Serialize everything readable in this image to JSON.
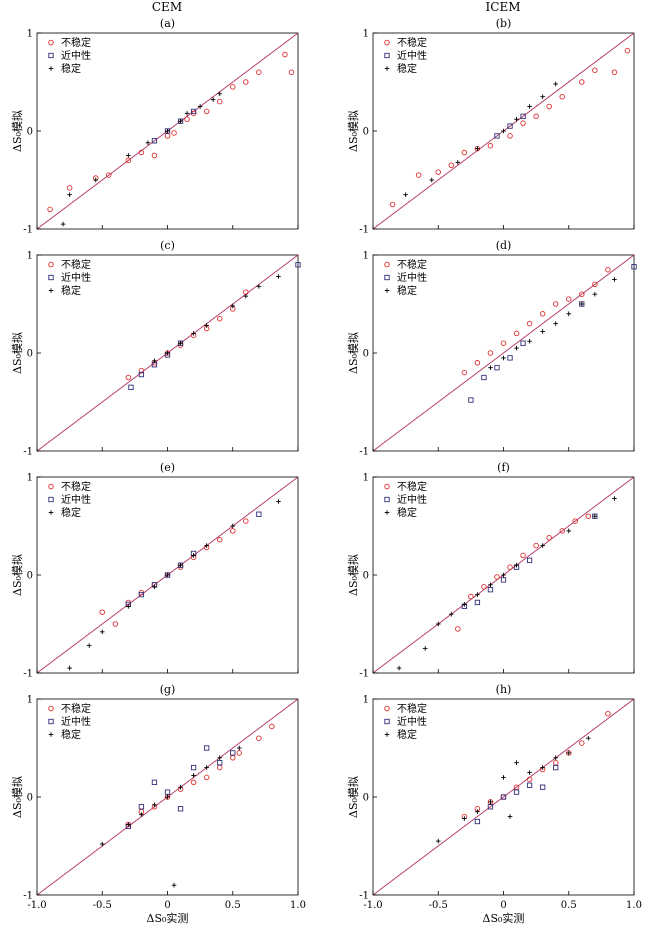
{
  "figure": {
    "column_titles": [
      "CEM",
      "ICEM"
    ],
    "panel_labels": [
      "(a)",
      "(b)",
      "(c)",
      "(d)",
      "(e)",
      "(f)",
      "(g)",
      "(h)"
    ],
    "y_axis_title": "ΔS₀模拟",
    "x_axis_title": "ΔS₀实测",
    "legend": [
      "不稳定",
      "近中性",
      "稳定"
    ],
    "colors": {
      "unstable": "#e03030",
      "neutral": "#30307a",
      "stable": "#000000",
      "line": "#b03060"
    }
  },
  "chart_data": [
    {
      "type": "scatter",
      "panel": "(a)",
      "xlim": [
        -1,
        1
      ],
      "ylim": [
        -1,
        1
      ],
      "yticks": [
        "1",
        "0",
        "-1"
      ],
      "xticks": [],
      "series": [
        {
          "name": "不稳定",
          "x": [
            -0.9,
            -0.75,
            -0.55,
            -0.45,
            -0.3,
            -0.2,
            -0.1,
            0.0,
            0.05,
            0.15,
            0.2,
            0.3,
            0.4,
            0.5,
            0.6,
            0.7,
            0.9,
            0.95
          ],
          "y": [
            -0.8,
            -0.58,
            -0.48,
            -0.45,
            -0.3,
            -0.22,
            -0.25,
            -0.05,
            -0.02,
            0.12,
            0.18,
            0.2,
            0.3,
            0.45,
            0.5,
            0.6,
            0.78,
            0.6
          ]
        },
        {
          "name": "近中性",
          "x": [
            -0.1,
            0.0,
            0.1,
            0.2
          ],
          "y": [
            -0.1,
            0.0,
            0.1,
            0.2
          ]
        },
        {
          "name": "稳定",
          "x": [
            -0.8,
            -0.75,
            -0.55,
            -0.3,
            -0.15,
            0.0,
            0.1,
            0.15,
            0.25,
            0.35,
            0.4
          ],
          "y": [
            -0.95,
            -0.65,
            -0.5,
            -0.25,
            -0.12,
            0.0,
            0.1,
            0.18,
            0.25,
            0.32,
            0.38
          ]
        }
      ]
    },
    {
      "type": "scatter",
      "panel": "(b)",
      "xlim": [
        -1,
        1
      ],
      "ylim": [
        -1,
        1
      ],
      "yticks": [
        "1",
        "0",
        "-1"
      ],
      "xticks": [],
      "series": [
        {
          "name": "不稳定",
          "x": [
            -0.85,
            -0.65,
            -0.5,
            -0.4,
            -0.3,
            -0.2,
            -0.1,
            0.05,
            0.15,
            0.25,
            0.35,
            0.45,
            0.6,
            0.7,
            0.85,
            0.95
          ],
          "y": [
            -0.75,
            -0.45,
            -0.42,
            -0.35,
            -0.22,
            -0.18,
            -0.15,
            -0.05,
            0.08,
            0.15,
            0.25,
            0.35,
            0.5,
            0.62,
            0.6,
            0.82
          ]
        },
        {
          "name": "近中性",
          "x": [
            -0.05,
            0.05,
            0.15
          ],
          "y": [
            -0.05,
            0.05,
            0.15
          ]
        },
        {
          "name": "稳定",
          "x": [
            -0.75,
            -0.55,
            -0.35,
            -0.2,
            0.0,
            0.1,
            0.2,
            0.3,
            0.4
          ],
          "y": [
            -0.65,
            -0.5,
            -0.32,
            -0.18,
            0.0,
            0.12,
            0.25,
            0.35,
            0.48
          ]
        }
      ]
    },
    {
      "type": "scatter",
      "panel": "(c)",
      "xlim": [
        -1,
        1
      ],
      "ylim": [
        -1,
        1
      ],
      "yticks": [
        "1",
        "0",
        "-1"
      ],
      "xticks": [],
      "series": [
        {
          "name": "不稳定",
          "x": [
            -0.3,
            -0.2,
            -0.1,
            0.0,
            0.1,
            0.2,
            0.3,
            0.4,
            0.5,
            0.6
          ],
          "y": [
            -0.25,
            -0.18,
            -0.1,
            0.0,
            0.08,
            0.18,
            0.25,
            0.35,
            0.45,
            0.62
          ]
        },
        {
          "name": "近中性",
          "x": [
            -0.28,
            -0.2,
            -0.1,
            0.0,
            0.1,
            1.0
          ],
          "y": [
            -0.35,
            -0.22,
            -0.12,
            -0.02,
            0.1,
            0.9
          ]
        },
        {
          "name": "稳定",
          "x": [
            -0.1,
            0.0,
            0.1,
            0.2,
            0.3,
            0.5,
            0.6,
            0.7,
            0.85
          ],
          "y": [
            -0.08,
            0.0,
            0.1,
            0.2,
            0.28,
            0.48,
            0.58,
            0.68,
            0.78
          ]
        }
      ]
    },
    {
      "type": "scatter",
      "panel": "(d)",
      "xlim": [
        -1,
        1
      ],
      "ylim": [
        -1,
        1
      ],
      "yticks": [
        "1",
        "0",
        "-1"
      ],
      "xticks": [],
      "series": [
        {
          "name": "不稳定",
          "x": [
            -0.3,
            -0.2,
            -0.1,
            0.0,
            0.1,
            0.2,
            0.3,
            0.4,
            0.5,
            0.6,
            0.7,
            0.8
          ],
          "y": [
            -0.2,
            -0.1,
            0.0,
            0.1,
            0.2,
            0.3,
            0.4,
            0.5,
            0.55,
            0.6,
            0.7,
            0.85
          ]
        },
        {
          "name": "近中性",
          "x": [
            -0.25,
            -0.15,
            -0.05,
            0.05,
            0.15,
            0.6,
            1.0
          ],
          "y": [
            -0.48,
            -0.25,
            -0.15,
            -0.05,
            0.1,
            0.5,
            0.88
          ]
        },
        {
          "name": "稳定",
          "x": [
            -0.1,
            0.0,
            0.1,
            0.2,
            0.3,
            0.4,
            0.5,
            0.6,
            0.7,
            0.85
          ],
          "y": [
            -0.15,
            -0.05,
            0.05,
            0.12,
            0.22,
            0.3,
            0.4,
            0.5,
            0.6,
            0.75
          ]
        }
      ]
    },
    {
      "type": "scatter",
      "panel": "(e)",
      "xlim": [
        -1,
        1
      ],
      "ylim": [
        -1,
        1
      ],
      "yticks": [
        "1",
        "0",
        "-1"
      ],
      "xticks": [],
      "series": [
        {
          "name": "不稳定",
          "x": [
            -0.5,
            -0.4,
            -0.3,
            -0.2,
            -0.1,
            0.0,
            0.1,
            0.2,
            0.3,
            0.4,
            0.5,
            0.6
          ],
          "y": [
            -0.38,
            -0.5,
            -0.28,
            -0.18,
            -0.1,
            0.0,
            0.08,
            0.18,
            0.28,
            0.36,
            0.45,
            0.55
          ]
        },
        {
          "name": "近中性",
          "x": [
            -0.3,
            -0.2,
            -0.1,
            0.0,
            0.1,
            0.2,
            0.7
          ],
          "y": [
            -0.3,
            -0.2,
            -0.1,
            0.0,
            0.1,
            0.22,
            0.62
          ]
        },
        {
          "name": "稳定",
          "x": [
            -0.75,
            -0.6,
            -0.5,
            -0.3,
            -0.1,
            0.0,
            0.1,
            0.2,
            0.3,
            0.5,
            0.85
          ],
          "y": [
            -0.95,
            -0.72,
            -0.58,
            -0.32,
            -0.12,
            0.0,
            0.1,
            0.2,
            0.3,
            0.5,
            0.75
          ]
        }
      ]
    },
    {
      "type": "scatter",
      "panel": "(f)",
      "xlim": [
        -1,
        1
      ],
      "ylim": [
        -1,
        1
      ],
      "yticks": [
        "1",
        "0",
        "-1"
      ],
      "xticks": [],
      "series": [
        {
          "name": "不稳定",
          "x": [
            -0.35,
            -0.25,
            -0.15,
            -0.05,
            0.05,
            0.15,
            0.25,
            0.35,
            0.45,
            0.55,
            0.65
          ],
          "y": [
            -0.55,
            -0.22,
            -0.12,
            -0.02,
            0.08,
            0.2,
            0.3,
            0.38,
            0.45,
            0.55,
            0.6
          ]
        },
        {
          "name": "近中性",
          "x": [
            -0.3,
            -0.2,
            -0.1,
            0.0,
            0.1,
            0.2,
            0.7
          ],
          "y": [
            -0.32,
            -0.28,
            -0.15,
            -0.05,
            0.08,
            0.15,
            0.6
          ]
        },
        {
          "name": "稳定",
          "x": [
            -0.8,
            -0.6,
            -0.5,
            -0.4,
            -0.3,
            -0.2,
            -0.1,
            0.0,
            0.1,
            0.3,
            0.5,
            0.7,
            0.85
          ],
          "y": [
            -0.95,
            -0.75,
            -0.5,
            -0.4,
            -0.3,
            -0.2,
            -0.1,
            0.0,
            0.1,
            0.3,
            0.45,
            0.6,
            0.78
          ]
        }
      ]
    },
    {
      "type": "scatter",
      "panel": "(g)",
      "xlim": [
        -1,
        1
      ],
      "ylim": [
        -1,
        1
      ],
      "yticks": [
        "1",
        "0",
        "-1"
      ],
      "xticks": [
        "-1.0",
        "-0.5",
        "0",
        "0.5",
        "1.0"
      ],
      "series": [
        {
          "name": "不稳定",
          "x": [
            -0.3,
            -0.2,
            -0.1,
            0.0,
            0.1,
            0.2,
            0.3,
            0.4,
            0.5,
            0.55,
            0.7,
            0.8
          ],
          "y": [
            -0.28,
            -0.15,
            -0.1,
            0.0,
            0.08,
            0.15,
            0.2,
            0.3,
            0.4,
            0.45,
            0.6,
            0.72
          ]
        },
        {
          "name": "近中性",
          "x": [
            -0.3,
            -0.2,
            -0.1,
            0.0,
            0.1,
            0.2,
            0.3,
            0.4,
            0.5
          ],
          "y": [
            -0.3,
            -0.1,
            0.15,
            0.05,
            -0.12,
            0.3,
            0.5,
            0.35,
            0.45
          ]
        },
        {
          "name": "稳定",
          "x": [
            -0.5,
            -0.3,
            -0.2,
            -0.1,
            0.0,
            0.05,
            0.1,
            0.2,
            0.3,
            0.4,
            0.55
          ],
          "y": [
            -0.48,
            -0.28,
            -0.18,
            -0.08,
            0.0,
            -0.9,
            0.1,
            0.22,
            0.3,
            0.4,
            0.5
          ]
        }
      ]
    },
    {
      "type": "scatter",
      "panel": "(h)",
      "xlim": [
        -1,
        1
      ],
      "ylim": [
        -1,
        1
      ],
      "yticks": [
        "1",
        "0",
        "-1"
      ],
      "xticks": [
        "-1.0",
        "-0.5",
        "0",
        "0.5",
        "1.0"
      ],
      "series": [
        {
          "name": "不稳定",
          "x": [
            -0.3,
            -0.2,
            -0.1,
            0.0,
            0.1,
            0.2,
            0.3,
            0.4,
            0.5,
            0.6,
            0.8
          ],
          "y": [
            -0.2,
            -0.12,
            -0.05,
            0.0,
            0.1,
            0.18,
            0.28,
            0.35,
            0.45,
            0.55,
            0.85
          ]
        },
        {
          "name": "近中性",
          "x": [
            -0.2,
            -0.1,
            0.0,
            0.1,
            0.2,
            0.3,
            0.4
          ],
          "y": [
            -0.25,
            -0.1,
            0.0,
            0.05,
            0.12,
            0.1,
            0.3
          ]
        },
        {
          "name": "稳定",
          "x": [
            -0.5,
            -0.3,
            -0.2,
            -0.1,
            0.0,
            0.05,
            0.1,
            0.2,
            0.3,
            0.4,
            0.5,
            0.65
          ],
          "y": [
            -0.45,
            -0.22,
            -0.15,
            -0.05,
            0.2,
            -0.2,
            0.35,
            0.25,
            0.3,
            0.4,
            0.45,
            0.6
          ]
        }
      ]
    }
  ]
}
